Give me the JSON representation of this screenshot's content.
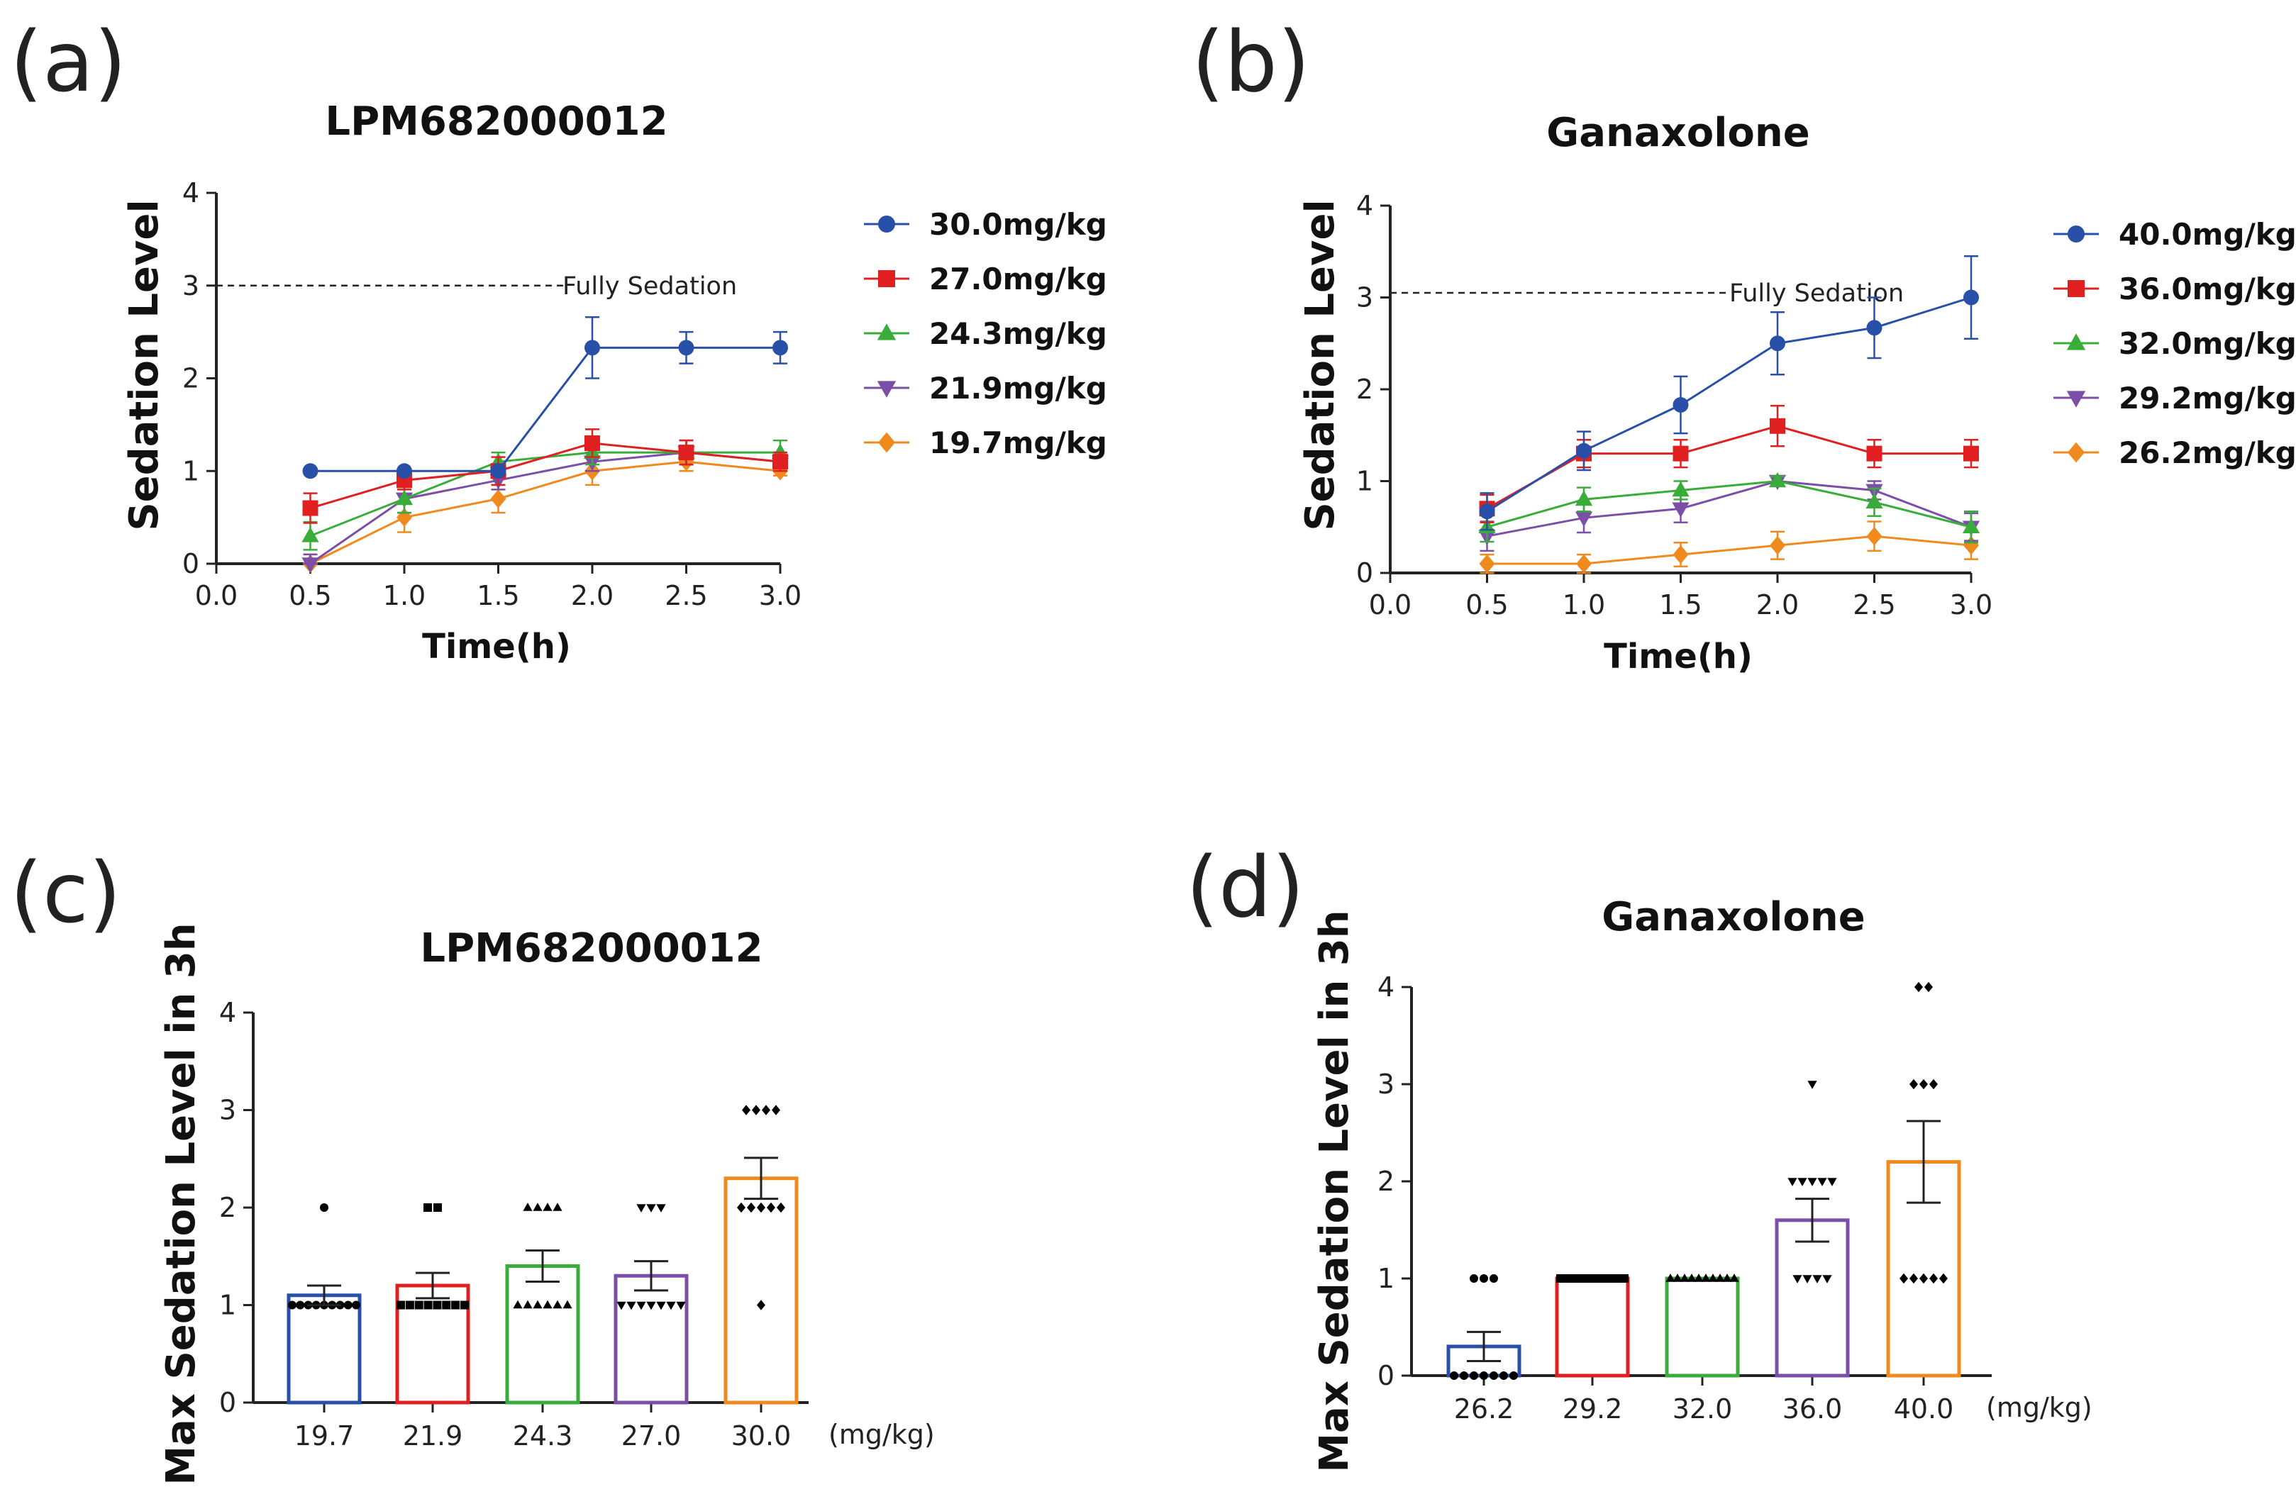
{
  "chart_data": [
    {
      "panel": "(a)",
      "type": "line",
      "title": "LPM682000012",
      "xlabel": "Time(h)",
      "ylabel": "Sedation Level",
      "xlim": [
        0,
        3
      ],
      "ylim": [
        0,
        4
      ],
      "xticks": [
        "0.0",
        "0.5",
        "1.0",
        "1.5",
        "2.0",
        "2.5",
        "3.0"
      ],
      "yticks": [
        "0",
        "1",
        "2",
        "3",
        "4"
      ],
      "reference_line": {
        "y": 3,
        "label": "Fully Sedation"
      },
      "legend_position": "right",
      "x": [
        0.5,
        1.0,
        1.5,
        2.0,
        2.5,
        3.0
      ],
      "series": [
        {
          "name": "30.0mg/kg",
          "color": "#2850a8",
          "marker": "circle",
          "values": [
            1.0,
            1.0,
            1.0,
            2.33,
            2.33,
            2.33
          ],
          "errors": [
            0,
            0,
            0,
            0.33,
            0.17,
            0.17
          ]
        },
        {
          "name": "27.0mg/kg",
          "color": "#e02020",
          "marker": "square",
          "values": [
            0.6,
            0.9,
            1.0,
            1.3,
            1.2,
            1.1
          ],
          "errors": [
            0.16,
            0.1,
            0.15,
            0.15,
            0.13,
            0.1
          ]
        },
        {
          "name": "24.3mg/kg",
          "color": "#3aac3a",
          "marker": "triangle-up",
          "values": [
            0.3,
            0.7,
            1.1,
            1.2,
            1.2,
            1.2
          ],
          "errors": [
            0.15,
            0.15,
            0.1,
            0.13,
            0.13,
            0.13
          ]
        },
        {
          "name": "21.9mg/kg",
          "color": "#7b4fa8",
          "marker": "triangle-down",
          "values": [
            0.0,
            0.7,
            0.9,
            1.1,
            1.2,
            1.1
          ],
          "errors": [
            0.1,
            0.15,
            0.1,
            0.1,
            0.13,
            0.1
          ]
        },
        {
          "name": "19.7mg/kg",
          "color": "#f08a1c",
          "marker": "diamond",
          "values": [
            0.0,
            0.5,
            0.7,
            1.0,
            1.1,
            1.0
          ],
          "errors": [
            0.1,
            0.16,
            0.15,
            0.15,
            0.1,
            0.05
          ]
        }
      ]
    },
    {
      "panel": "(b)",
      "type": "line",
      "title": "Ganaxolone",
      "xlabel": "Time(h)",
      "ylabel": "Sedation Level",
      "xlim": [
        0,
        3
      ],
      "ylim": [
        0,
        4
      ],
      "xticks": [
        "0.0",
        "0.5",
        "1.0",
        "1.5",
        "2.0",
        "2.5",
        "3.0"
      ],
      "yticks": [
        "0",
        "1",
        "2",
        "3",
        "4"
      ],
      "reference_line": {
        "y": 3.05,
        "label": "Fully Sedation"
      },
      "legend_position": "right",
      "x": [
        0.5,
        1.0,
        1.5,
        2.0,
        2.5,
        3.0
      ],
      "series": [
        {
          "name": "40.0mg/kg",
          "color": "#2850a8",
          "marker": "circle",
          "values": [
            0.67,
            1.33,
            1.83,
            2.5,
            2.67,
            3.0
          ],
          "errors": [
            0.2,
            0.21,
            0.31,
            0.34,
            0.33,
            0.45
          ]
        },
        {
          "name": "36.0mg/kg",
          "color": "#e02020",
          "marker": "square",
          "values": [
            0.7,
            1.3,
            1.3,
            1.6,
            1.3,
            1.3
          ],
          "errors": [
            0.15,
            0.15,
            0.15,
            0.22,
            0.15,
            0.15
          ]
        },
        {
          "name": "32.0mg/kg",
          "color": "#3aac3a",
          "marker": "triangle-up",
          "values": [
            0.5,
            0.8,
            0.9,
            1.0,
            0.77,
            0.5
          ],
          "errors": [
            0.16,
            0.13,
            0.1,
            0.05,
            0.15,
            0.17
          ]
        },
        {
          "name": "29.2mg/kg",
          "color": "#7b4fa8",
          "marker": "triangle-down",
          "values": [
            0.4,
            0.6,
            0.7,
            1.0,
            0.9,
            0.5
          ],
          "errors": [
            0.16,
            0.16,
            0.15,
            0.05,
            0.1,
            0.15
          ]
        },
        {
          "name": "26.2mg/kg",
          "color": "#f08a1c",
          "marker": "diamond",
          "values": [
            0.1,
            0.1,
            0.2,
            0.3,
            0.4,
            0.3
          ],
          "errors": [
            0.1,
            0.1,
            0.13,
            0.15,
            0.16,
            0.15
          ]
        }
      ]
    },
    {
      "panel": "(c)",
      "type": "bar",
      "title": "LPM682000012",
      "xlabel": "(mg/kg)",
      "ylabel": "Max Sedation Level in 3h",
      "ylim": [
        0,
        4
      ],
      "yticks": [
        "0",
        "1",
        "2",
        "3",
        "4"
      ],
      "categories": [
        "19.7",
        "21.9",
        "24.3",
        "27.0",
        "30.0"
      ],
      "values": [
        1.1,
        1.2,
        1.4,
        1.3,
        2.3
      ],
      "errors": [
        0.1,
        0.13,
        0.16,
        0.15,
        0.21
      ],
      "colors": [
        "#2850a8",
        "#e02020",
        "#3aac3a",
        "#7b4fa8",
        "#f08a1c"
      ],
      "markers": [
        "circle",
        "square",
        "triangle-up",
        "triangle-down",
        "diamond"
      ],
      "points": [
        [
          2,
          1,
          1,
          1,
          1,
          1,
          1,
          1,
          1,
          1
        ],
        [
          2,
          2,
          1,
          1,
          1,
          1,
          1,
          1,
          1,
          1
        ],
        [
          2,
          2,
          2,
          2,
          1,
          1,
          1,
          1,
          1,
          1
        ],
        [
          2,
          2,
          2,
          1,
          1,
          1,
          1,
          1,
          1,
          1
        ],
        [
          3,
          3,
          3,
          3,
          2,
          2,
          2,
          2,
          2,
          1
        ]
      ]
    },
    {
      "panel": "(d)",
      "type": "bar",
      "title": "Ganaxolone",
      "xlabel": "(mg/kg)",
      "ylabel": "Max Sedation Level in 3h",
      "ylim": [
        0,
        4
      ],
      "yticks": [
        "0",
        "1",
        "2",
        "3",
        "4"
      ],
      "categories": [
        "26.2",
        "29.2",
        "32.0",
        "36.0",
        "40.0"
      ],
      "values": [
        0.3,
        1.0,
        1.0,
        1.6,
        2.2
      ],
      "errors": [
        0.15,
        0,
        0,
        0.22,
        0.42
      ],
      "colors": [
        "#2850a8",
        "#e02020",
        "#3aac3a",
        "#7b4fa8",
        "#f08a1c"
      ],
      "markers": [
        "circle",
        "square",
        "triangle-up",
        "triangle-down",
        "diamond"
      ],
      "points": [
        [
          1,
          1,
          1,
          0,
          0,
          0,
          0,
          0,
          0,
          0
        ],
        [
          1,
          1,
          1,
          1,
          1,
          1,
          1,
          1,
          1,
          1
        ],
        [
          1,
          1,
          1,
          1,
          1,
          1,
          1,
          1,
          1,
          1
        ],
        [
          3,
          2,
          2,
          2,
          2,
          2,
          1,
          1,
          1,
          1
        ],
        [
          4,
          4,
          3,
          3,
          3,
          1,
          1,
          1,
          1,
          1
        ]
      ]
    }
  ]
}
